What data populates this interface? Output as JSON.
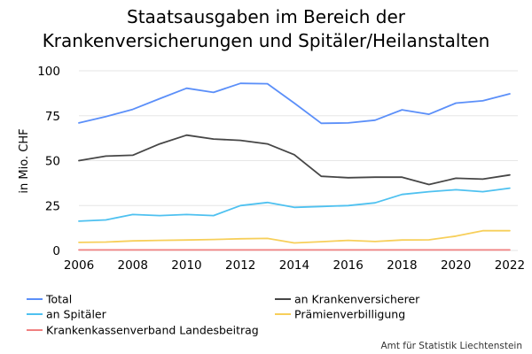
{
  "chart_data": {
    "type": "line",
    "title_lines": [
      "Staatsausgaben im Bereich der",
      "Krankenversicherungen und Spitäler/Heilanstalten"
    ],
    "xlabel": "",
    "ylabel": "in Mio. CHF",
    "x": [
      2006,
      2007,
      2008,
      2009,
      2010,
      2011,
      2012,
      2013,
      2014,
      2015,
      2016,
      2017,
      2018,
      2019,
      2020,
      2021,
      2022
    ],
    "xticks": [
      2006,
      2008,
      2010,
      2012,
      2014,
      2016,
      2018,
      2020,
      2022
    ],
    "yticks": [
      0,
      25,
      50,
      75,
      100
    ],
    "xlim": [
      2006,
      2022.3
    ],
    "ylim": [
      0,
      100
    ],
    "grid": true,
    "legend_placement": "bottom",
    "series": [
      {
        "name": "Total",
        "color": "#5b8ff9",
        "values": [
          71,
          74.5,
          78.5,
          84.5,
          90.3,
          88,
          93,
          92.8,
          82,
          70.8,
          71,
          72.5,
          78.3,
          75.8,
          82,
          83.3,
          87.2
        ]
      },
      {
        "name": "an Krankenversicherer",
        "color": "#464646",
        "values": [
          50,
          52.5,
          53,
          59.3,
          64.2,
          62,
          61.3,
          59.3,
          53.3,
          41.3,
          40.5,
          40.8,
          40.8,
          36.7,
          40.2,
          39.7,
          42
        ]
      },
      {
        "name": "an Spitäler",
        "color": "#4ec1f0",
        "values": [
          16.3,
          17,
          20,
          19.4,
          20,
          19.4,
          25,
          26.7,
          24,
          24.5,
          25,
          26.5,
          31.2,
          32.7,
          33.8,
          32.7,
          34.7
        ]
      },
      {
        "name": "Prämienverbilligung",
        "color": "#f7cf5a",
        "values": [
          4.5,
          4.7,
          5.3,
          5.6,
          5.8,
          6.1,
          6.5,
          6.7,
          4.2,
          4.9,
          5.6,
          5,
          5.8,
          5.9,
          8,
          11,
          11
        ]
      },
      {
        "name": "Krankenkassenverband Landesbeitrag",
        "color": "#f08080",
        "values": [
          0.3,
          0.3,
          0.3,
          0.3,
          0.3,
          0.3,
          0.3,
          0.3,
          0.3,
          0.3,
          0.3,
          0.3,
          0.3,
          0.3,
          0.3,
          0.3,
          0.3
        ]
      }
    ],
    "source": "Amt für Statistik Liechtenstein"
  }
}
